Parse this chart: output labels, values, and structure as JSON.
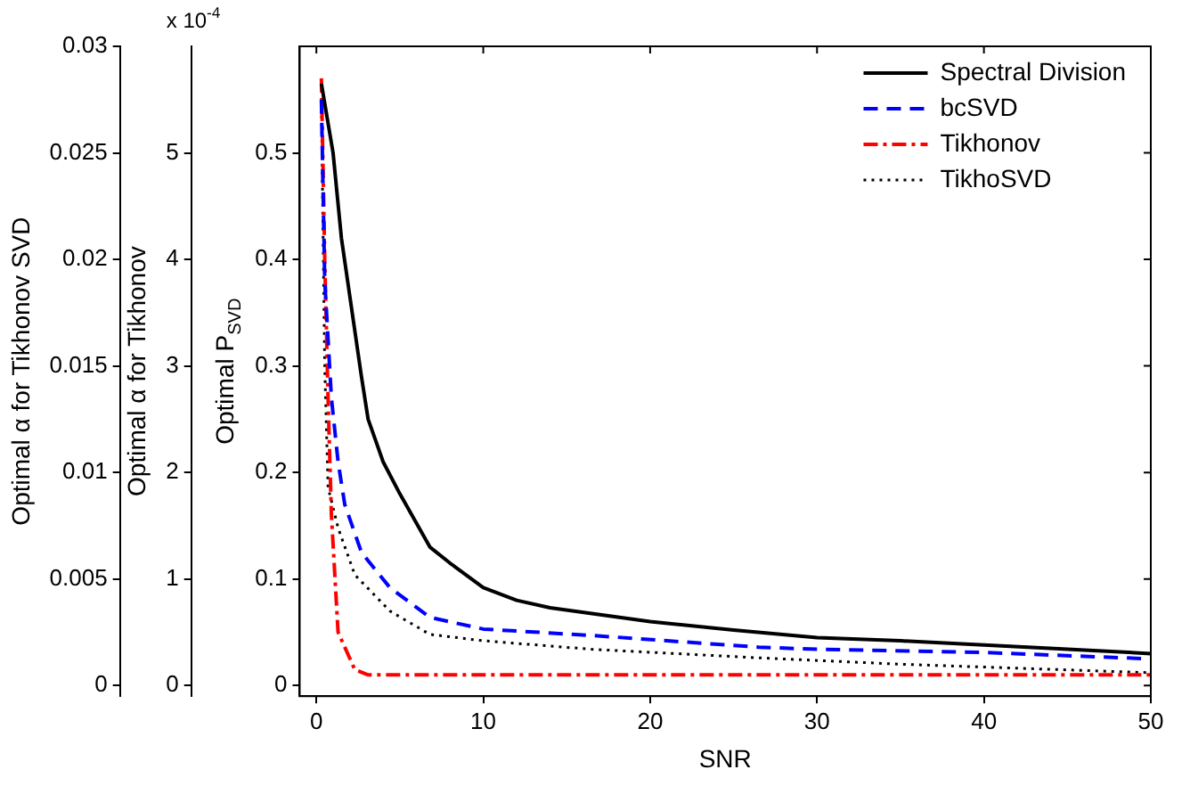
{
  "chart_data": {
    "type": "line",
    "xlabel": "SNR",
    "ylabel": "Optimal P$_{SVD}$",
    "y2label": "Optimal α for Tikhonov",
    "y3label": "Optimal α for Tikhonov SVD",
    "annotations": [
      "x 10$^{-4}$"
    ],
    "xlim": [
      -1,
      50
    ],
    "xticks": [
      0,
      10,
      20,
      30,
      40,
      50
    ],
    "ylim": [
      -0.01,
      0.6
    ],
    "yticks": [
      0,
      0.1,
      0.2,
      0.3,
      0.4,
      0.5
    ],
    "y2lim": [
      -0.1,
      6
    ],
    "y2ticks": [
      0,
      1,
      2,
      3,
      4,
      5
    ],
    "y3lim": [
      -0.0005,
      0.03
    ],
    "y3ticks": [
      0,
      0.005,
      0.01,
      0.015,
      0.02,
      0.025,
      0.03
    ],
    "legend": "top right",
    "marker": "none",
    "series": [
      {
        "name": "Spectral Division",
        "color": "#000000",
        "line_style": "solid",
        "x": [
          0.3,
          1,
          1.5,
          2.7,
          3.1,
          4,
          5,
          6.8,
          8,
          10,
          12,
          14,
          20,
          25,
          30,
          35,
          40,
          45,
          50
        ],
        "values": [
          0.565,
          0.5,
          0.42,
          0.29,
          0.25,
          0.21,
          0.18,
          0.13,
          0.115,
          0.092,
          0.08,
          0.073,
          0.06,
          0.052,
          0.045,
          0.042,
          0.038,
          0.034,
          0.03
        ]
      },
      {
        "name": "bcSVD",
        "color": "#0000ff",
        "line_style": "dashed",
        "x": [
          0.3,
          0.5,
          0.9,
          1.3,
          1.7,
          2.7,
          4.4,
          6.8,
          10,
          16.5,
          26.5,
          30,
          40,
          50
        ],
        "values": [
          0.55,
          0.38,
          0.27,
          0.21,
          0.17,
          0.125,
          0.092,
          0.064,
          0.053,
          0.047,
          0.036,
          0.034,
          0.031,
          0.025
        ]
      },
      {
        "name": "Tikhonov",
        "color": "#ff0000",
        "line_style": "dashdot",
        "axis": "y2",
        "x": [
          0.3,
          0.5,
          0.7,
          0.9,
          1.3,
          2.3,
          3.1,
          50
        ],
        "values": [
          5.7,
          4.0,
          2.7,
          1.6,
          0.5,
          0.15,
          0.1,
          0.1
        ]
      },
      {
        "name": "TikhoSVD",
        "color": "#000000",
        "line_style": "dotted",
        "axis": "y3",
        "x": [
          0.3,
          0.5,
          0.7,
          1.3,
          2.3,
          4.4,
          6.8,
          10,
          16.5,
          26.5,
          35,
          50
        ],
        "values": [
          0.0275,
          0.015,
          0.0093,
          0.0074,
          0.0052,
          0.0035,
          0.0024,
          0.0021,
          0.0017,
          0.0013,
          0.001,
          0.0006
        ]
      }
    ]
  }
}
